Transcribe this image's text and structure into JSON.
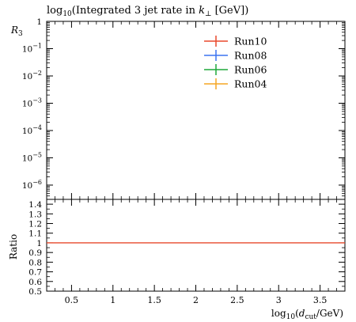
{
  "chart_data": [
    {
      "type": "line",
      "panel": "main",
      "title_parts": {
        "pre": "log",
        "sub": "10",
        "post": "(Integrated 3 jet rate in ",
        "var": "k",
        "varsub": "⊥",
        "end": " [GeV])"
      },
      "ylabel": {
        "main": "R",
        "sub": "3"
      },
      "y_scale": "log",
      "ylim": [
        3e-07,
        1
      ],
      "y_ticks": [
        {
          "value": 1,
          "label": "1",
          "exp": ""
        },
        {
          "value": 0.1,
          "label": "10",
          "exp": "−1"
        },
        {
          "value": 0.01,
          "label": "10",
          "exp": "−2"
        },
        {
          "value": 0.001,
          "label": "10",
          "exp": "−3"
        },
        {
          "value": 0.0001,
          "label": "10",
          "exp": "−4"
        },
        {
          "value": 1e-05,
          "label": "10",
          "exp": "−5"
        },
        {
          "value": 1e-06,
          "label": "10",
          "exp": "−6"
        }
      ],
      "xlim": [
        0.2,
        3.8
      ],
      "legend_position": "top-right",
      "series": [
        {
          "name": "Run10",
          "color": "#e8492c"
        },
        {
          "name": "Run08",
          "color": "#3b73f0"
        },
        {
          "name": "Run06",
          "color": "#1fa83a"
        },
        {
          "name": "Run04",
          "color": "#f6a623"
        }
      ]
    },
    {
      "type": "line",
      "panel": "ratio",
      "ylabel": "Ratio",
      "ylim": [
        0.5,
        1.45
      ],
      "y_ticks": [
        {
          "value": 0.5,
          "label": "0.5"
        },
        {
          "value": 0.6,
          "label": "0.6"
        },
        {
          "value": 0.7,
          "label": "0.7"
        },
        {
          "value": 0.8,
          "label": "0.8"
        },
        {
          "value": 0.9,
          "label": "0.9"
        },
        {
          "value": 1.0,
          "label": "1"
        },
        {
          "value": 1.1,
          "label": "1.1"
        },
        {
          "value": 1.2,
          "label": "1.2"
        },
        {
          "value": 1.3,
          "label": "1.3"
        },
        {
          "value": 1.4,
          "label": "1.4"
        }
      ],
      "xlim": [
        0.2,
        3.8
      ],
      "x_ticks": [
        {
          "value": 0.5,
          "label": "0.5"
        },
        {
          "value": 1.0,
          "label": "1"
        },
        {
          "value": 1.5,
          "label": "1.5"
        },
        {
          "value": 2.0,
          "label": "2"
        },
        {
          "value": 2.5,
          "label": "2.5"
        },
        {
          "value": 3.0,
          "label": "3"
        },
        {
          "value": 3.5,
          "label": "3.5"
        }
      ],
      "xlabel": {
        "pre": "log",
        "sub": "10",
        "open": "(",
        "var": "d",
        "varsub": "cut",
        "post": "/GeV)"
      },
      "reference_line": {
        "y": 1.0,
        "color": "#e8492c"
      }
    }
  ]
}
